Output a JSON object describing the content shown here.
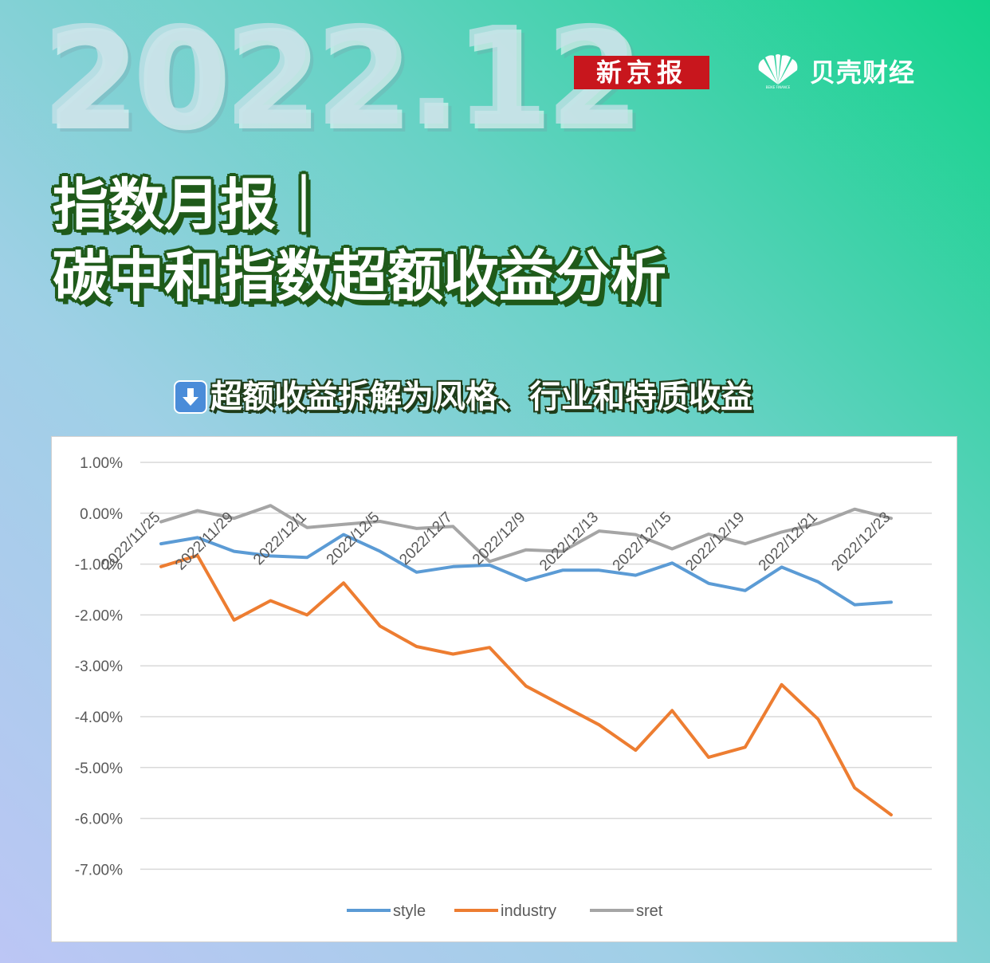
{
  "header": {
    "year": "2022.12",
    "logo_xjb": "新京报",
    "logo_bk": "贝壳财经",
    "logo_bk_small": "BEIKE FINANCE"
  },
  "title": {
    "line1": "指数月报｜",
    "line2": "碳中和指数超额收益分析"
  },
  "subtitle": {
    "icon": "down-arrow-icon",
    "text": "超额收益拆解为风格、行业和特质收益"
  },
  "colors": {
    "style": "#5b9bd5",
    "industry": "#ed7d31",
    "sret": "#a5a5a5",
    "logo_red": "#c8161d"
  },
  "chart_data": {
    "type": "line",
    "title": "",
    "xlabel": "",
    "ylabel": "",
    "ylim": [
      -7,
      1
    ],
    "yticks": [
      "1.00%",
      "0.00%",
      "-1.00%",
      "-2.00%",
      "-3.00%",
      "-4.00%",
      "-5.00%",
      "-6.00%",
      "-7.00%"
    ],
    "xtick_labels": [
      "2022/11/25",
      "2022/11/29",
      "2022/12/1",
      "2022/12/5",
      "2022/12/7",
      "2022/12/9",
      "2022/12/13",
      "2022/12/15",
      "2022/12/19",
      "2022/12/21",
      "2022/12/23"
    ],
    "grid": true,
    "legend_position": "bottom",
    "series": [
      {
        "name": "style",
        "values": [
          -0.6,
          -0.48,
          -0.75,
          -0.84,
          -0.87,
          -0.42,
          -0.75,
          -1.16,
          -1.05,
          -1.02,
          -1.32,
          -1.12,
          -1.12,
          -1.22,
          -0.98,
          -1.38,
          -1.52,
          -1.06,
          -1.35,
          -1.8,
          -1.75
        ]
      },
      {
        "name": "industry",
        "values": [
          -1.05,
          -0.83,
          -2.1,
          -1.72,
          -2.0,
          -1.37,
          -2.22,
          -2.62,
          -2.77,
          -2.64,
          -3.4,
          -3.78,
          -4.16,
          -4.66,
          -3.88,
          -4.8,
          -4.6,
          -3.37,
          -4.05,
          -5.4,
          -5.93
        ]
      },
      {
        "name": "sret",
        "values": [
          -0.17,
          0.05,
          -0.1,
          0.15,
          -0.28,
          -0.22,
          -0.16,
          -0.3,
          -0.26,
          -0.95,
          -0.72,
          -0.75,
          -0.35,
          -0.42,
          -0.7,
          -0.41,
          -0.6,
          -0.37,
          -0.2,
          0.08,
          -0.1
        ]
      }
    ]
  }
}
